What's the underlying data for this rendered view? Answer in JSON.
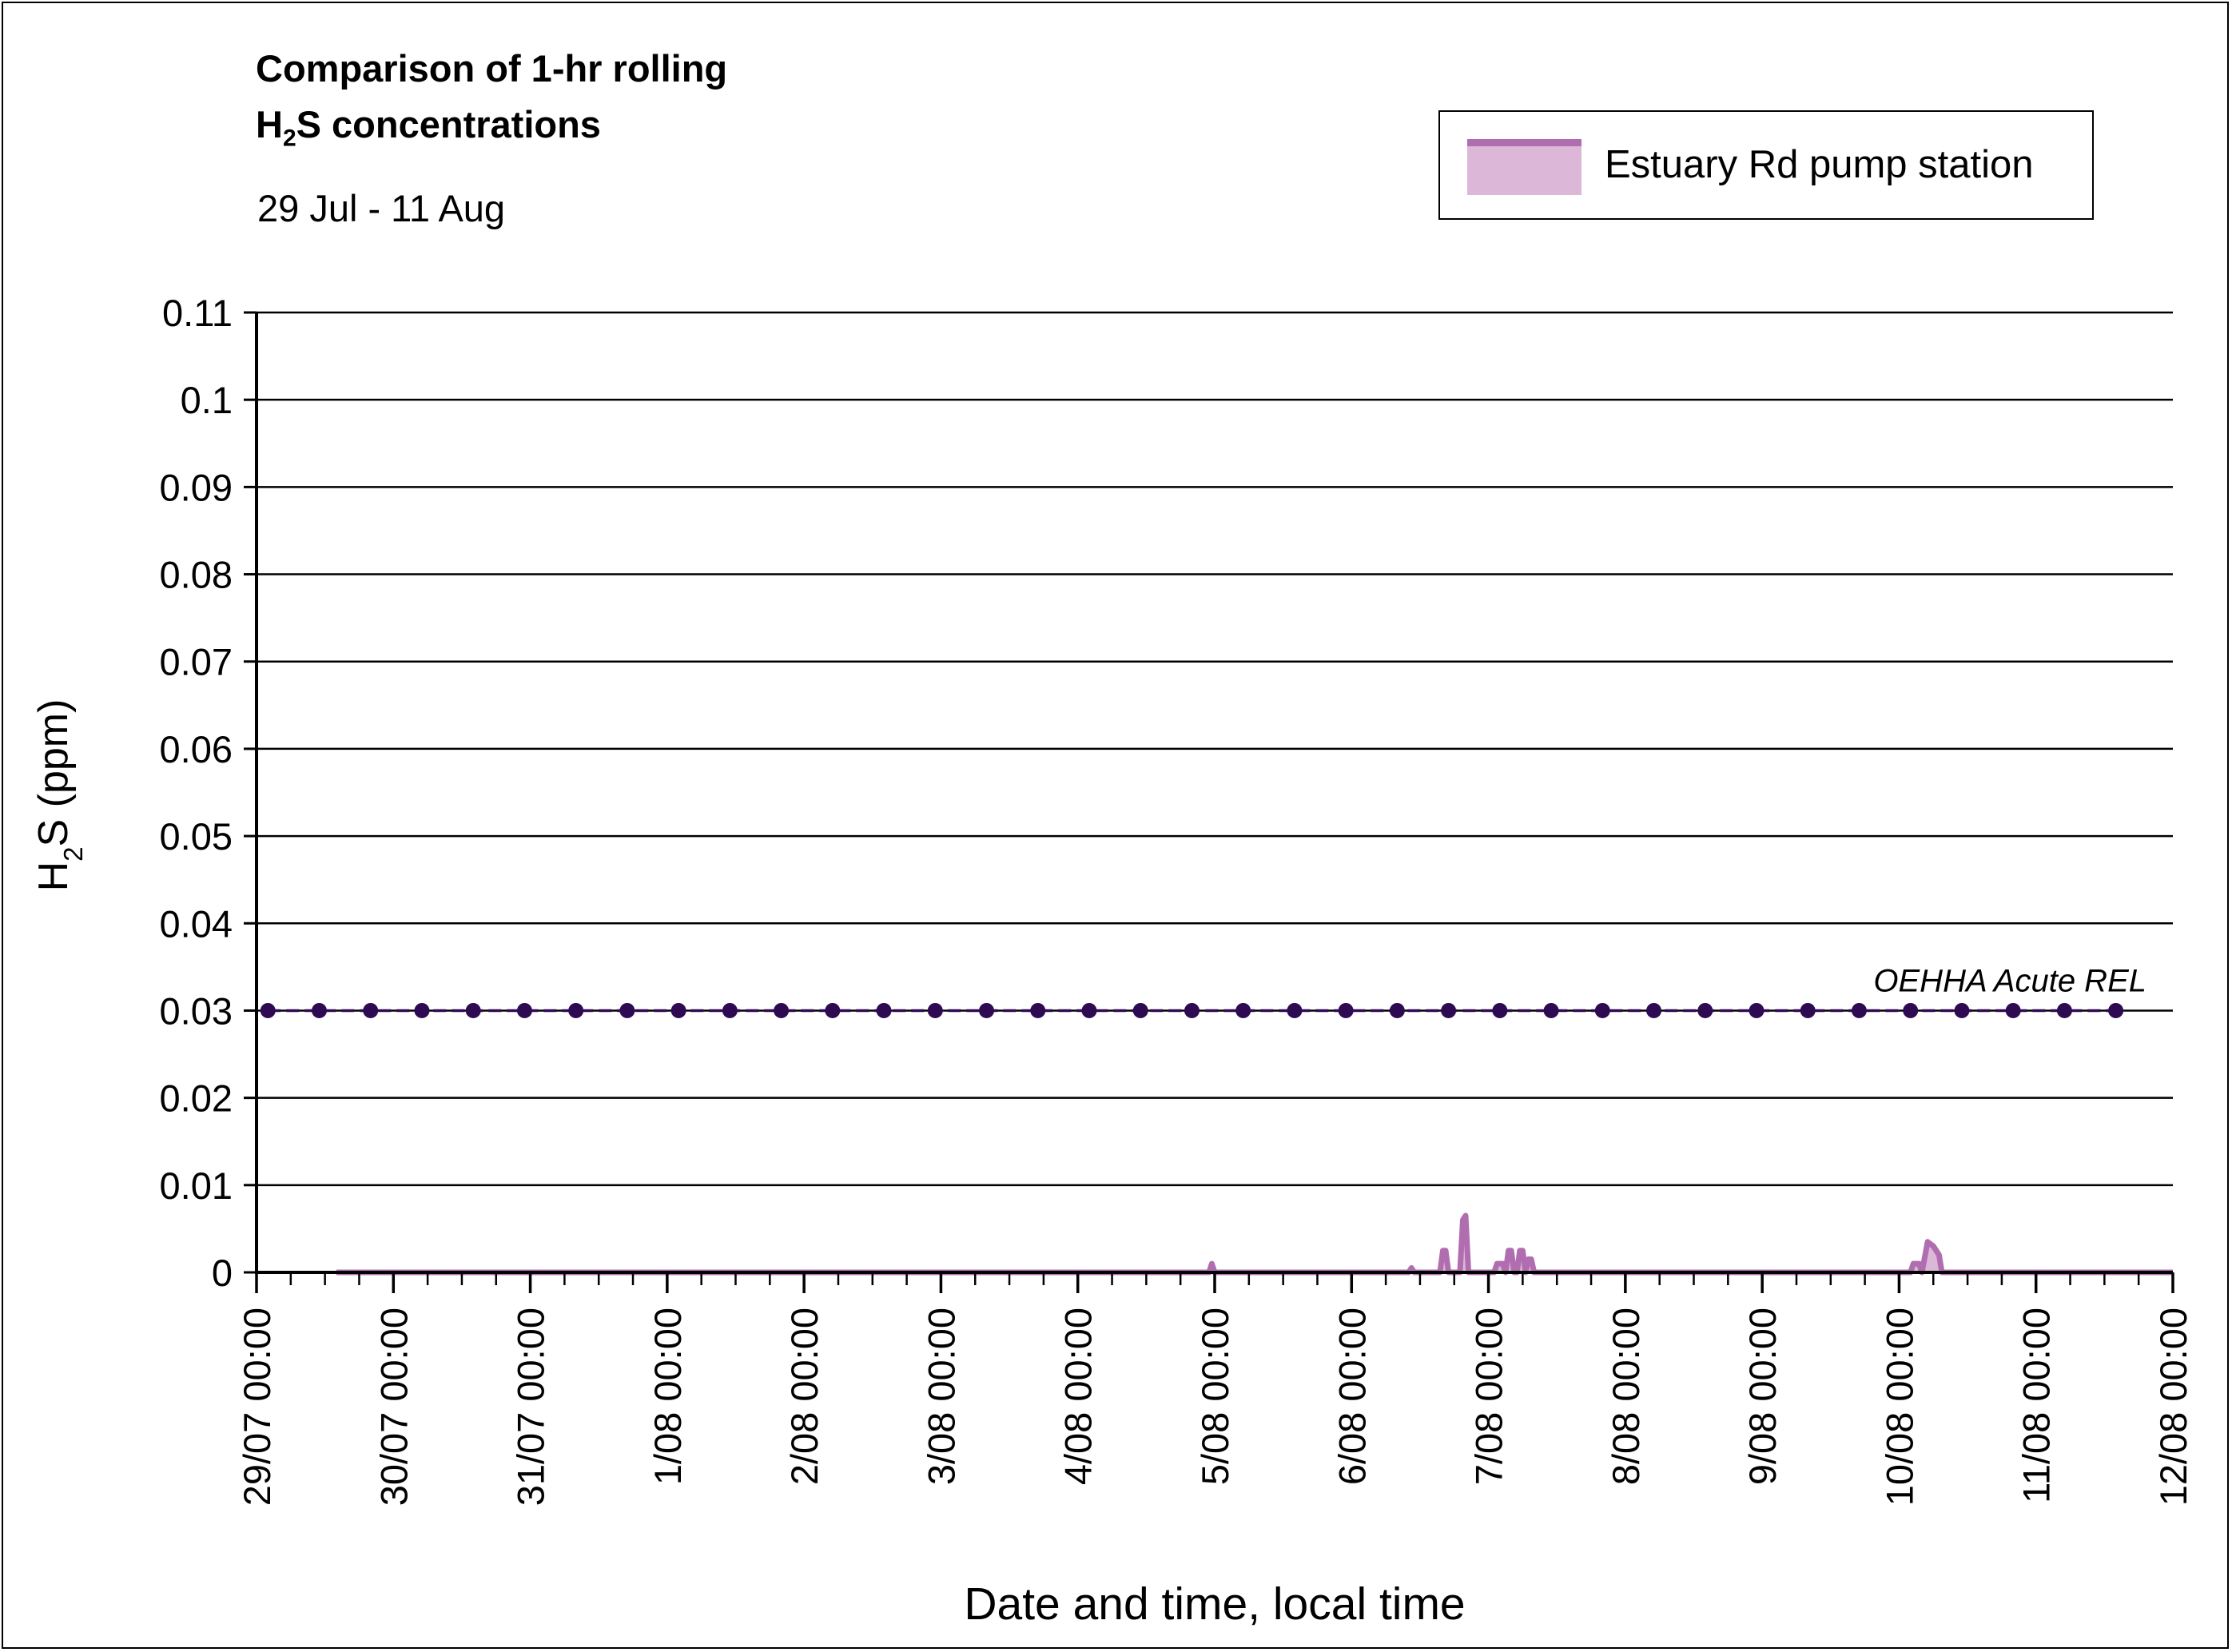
{
  "title_line1": "Comparison of 1-hr rolling",
  "title_line2_prefix": "H",
  "title_line2_sub": "2",
  "title_line2_suffix": "S concentrations",
  "subtitle": "29 Jul - 11 Aug",
  "legend": {
    "label": "Estuary Rd pump station"
  },
  "colors": {
    "series_line": "#b06eb0",
    "series_fill": "#dcb7d8",
    "threshold": "#2e0a52",
    "grid": "#000000"
  },
  "chart_data": {
    "type": "line",
    "title": "Comparison of 1-hr rolling H2S concentrations",
    "subtitle": "29 Jul - 11 Aug",
    "xlabel": "Date and time, local time",
    "ylabel": "H2S (ppm)",
    "ylim": [
      0,
      0.11
    ],
    "y_ticks": [
      "0",
      "0.01",
      "0.02",
      "0.03",
      "0.04",
      "0.05",
      "0.06",
      "0.07",
      "0.08",
      "0.09",
      "0.1",
      "0.11"
    ],
    "x_range": [
      "29/07 00:00",
      "12/08 00:00"
    ],
    "x_ticks": [
      "29/07 00:00",
      "30/07 00:00",
      "31/07 00:00",
      "1/08 00:00",
      "2/08 00:00",
      "3/08 00:00",
      "4/08 00:00",
      "5/08 00:00",
      "6/08 00:00",
      "7/08 00:00",
      "8/08 00:00",
      "9/08 00:00",
      "10/08 00:00",
      "11/08 00:00",
      "12/08 00:00"
    ],
    "grid": "horizontal",
    "legend_position": "top-right",
    "series": [
      {
        "name": "Estuary Rd pump station",
        "points": [
          {
            "x": "29/07 14:00",
            "y": 0
          },
          {
            "x": "4/08 23:00",
            "y": 0
          },
          {
            "x": "4/08 23:30",
            "y": 0.001
          },
          {
            "x": "5/08 00:00",
            "y": 0
          },
          {
            "x": "6/08 10:00",
            "y": 0
          },
          {
            "x": "6/08 10:30",
            "y": 0.0005
          },
          {
            "x": "6/08 11:00",
            "y": 0
          },
          {
            "x": "6/08 15:30",
            "y": 0
          },
          {
            "x": "6/08 16:00",
            "y": 0.0025
          },
          {
            "x": "6/08 16:30",
            "y": 0.0025
          },
          {
            "x": "6/08 17:00",
            "y": 0
          },
          {
            "x": "6/08 19:00",
            "y": 0
          },
          {
            "x": "6/08 19:30",
            "y": 0.006
          },
          {
            "x": "6/08 20:00",
            "y": 0.0065
          },
          {
            "x": "6/08 20:30",
            "y": 0
          },
          {
            "x": "7/08 01:00",
            "y": 0
          },
          {
            "x": "7/08 01:30",
            "y": 0.001
          },
          {
            "x": "7/08 02:30",
            "y": 0.001
          },
          {
            "x": "7/08 03:00",
            "y": 0
          },
          {
            "x": "7/08 03:30",
            "y": 0.0025
          },
          {
            "x": "7/08 04:00",
            "y": 0.0025
          },
          {
            "x": "7/08 04:30",
            "y": 0
          },
          {
            "x": "7/08 05:00",
            "y": 0
          },
          {
            "x": "7/08 05:30",
            "y": 0.0025
          },
          {
            "x": "7/08 06:00",
            "y": 0.0025
          },
          {
            "x": "7/08 06:30",
            "y": 0
          },
          {
            "x": "7/08 07:00",
            "y": 0.0015
          },
          {
            "x": "7/08 07:30",
            "y": 0.0015
          },
          {
            "x": "7/08 08:00",
            "y": 0
          },
          {
            "x": "10/08 02:00",
            "y": 0
          },
          {
            "x": "10/08 02:30",
            "y": 0.001
          },
          {
            "x": "10/08 03:30",
            "y": 0.001
          },
          {
            "x": "10/08 04:00",
            "y": 0
          },
          {
            "x": "10/08 05:00",
            "y": 0.0035
          },
          {
            "x": "10/08 06:00",
            "y": 0.003
          },
          {
            "x": "10/08 07:00",
            "y": 0.002
          },
          {
            "x": "10/08 07:30",
            "y": 0
          },
          {
            "x": "12/08 00:00",
            "y": 0
          }
        ]
      },
      {
        "label": "OEHHA Acute REL",
        "value": 0.03,
        "marker_x": [
          "29/07 02:00",
          "29/07 11:00",
          "29/07 20:00",
          "30/07 05:00",
          "30/07 14:00",
          "30/07 23:00",
          "31/07 08:00",
          "31/07 17:00",
          "1/08 02:00",
          "1/08 11:00",
          "1/08 20:00",
          "2/08 05:00",
          "2/08 14:00",
          "2/08 23:00",
          "3/08 08:00",
          "3/08 17:00",
          "4/08 02:00",
          "4/08 11:00",
          "4/08 20:00",
          "5/08 05:00",
          "5/08 14:00",
          "5/08 23:00",
          "6/08 08:00",
          "6/08 17:00",
          "7/08 02:00",
          "7/08 11:00",
          "7/08 20:00",
          "8/08 05:00",
          "8/08 14:00",
          "8/08 23:00",
          "9/08 08:00",
          "9/08 17:00",
          "10/08 02:00",
          "10/08 11:00",
          "10/08 20:00",
          "11/08 05:00",
          "11/08 14:00"
        ]
      }
    ]
  }
}
